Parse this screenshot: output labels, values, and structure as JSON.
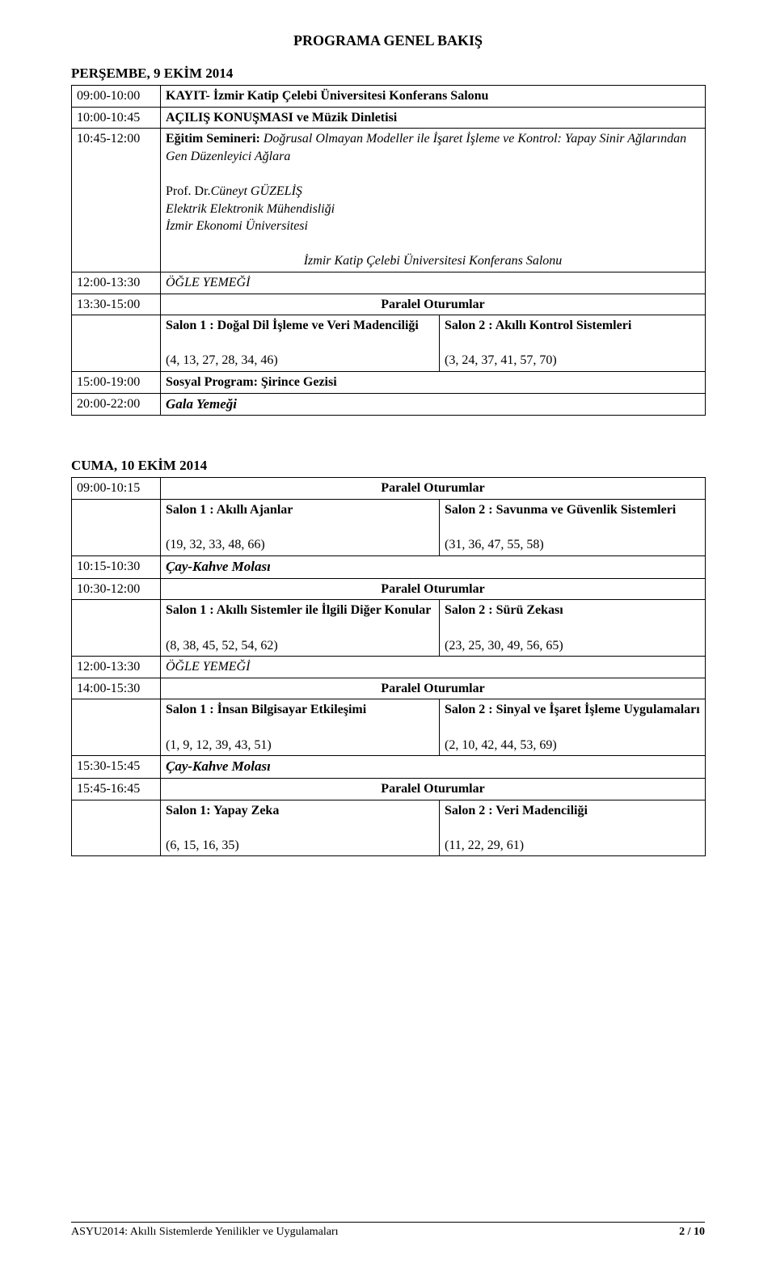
{
  "doc": {
    "title": "PROGRAMA GENEL BAKIŞ",
    "footer_left": "ASYU2014: Akıllı Sistemlerde Yenilikler ve Uygulamaları",
    "footer_right": "2 / 10"
  },
  "day1": {
    "heading": "PERŞEMBE, 9 EKİM 2014",
    "r1": {
      "time": "09:00-10:00",
      "text": "KAYIT- İzmir Katip Çelebi Üniversitesi Konferans Salonu"
    },
    "r2": {
      "time": "10:00-10:45",
      "text": "AÇILIŞ KONUŞMASI ve Müzik Dinletisi"
    },
    "r3": {
      "time": "10:45-12:00",
      "seminar_label": "Eğitim Semineri:",
      "seminar_topic": "Doğrusal Olmayan Modeller ile İşaret İşleme ve Kontrol: Yapay Sinir Ağlarından Gen Düzenleyici Ağlara",
      "speaker_prefix": "Prof. Dr.",
      "speaker_name": "Cüneyt GÜZELİŞ",
      "speaker_aff1": "Elektrik Elektronik Mühendisliği",
      "speaker_aff2": "İzmir Ekonomi Üniversitesi",
      "venue": "İzmir Katip Çelebi Üniversitesi Konferans Salonu"
    },
    "r4": {
      "time": "12:00-13:30",
      "text": "ÖĞLE YEMEĞİ"
    },
    "r5": {
      "time": "13:30-15:00",
      "header": "Paralel Oturumlar",
      "left_title": "Salon 1 : Doğal Dil İşleme ve Veri Madenciliği",
      "left_nums": "(4, 13, 27, 28, 34, 46)",
      "right_title": "Salon 2 : Akıllı Kontrol Sistemleri",
      "right_nums": "(3, 24, 37, 41, 57, 70)"
    },
    "r6": {
      "time": "15:00-19:00",
      "text": "Sosyal Program: Şirince Gezisi"
    },
    "r7": {
      "time": "20:00-22:00",
      "text": "Gala Yemeği"
    }
  },
  "day2": {
    "heading": "CUMA, 10 EKİM 2014",
    "r1": {
      "time": "09:00-10:15",
      "header": "Paralel Oturumlar",
      "left_title": "Salon 1 : Akıllı Ajanlar",
      "left_nums": "(19, 32, 33, 48, 66)",
      "right_title": "Salon 2 : Savunma ve Güvenlik Sistemleri",
      "right_nums": "(31, 36, 47, 55, 58)"
    },
    "r2": {
      "time": "10:15-10:30",
      "text": "Çay-Kahve Molası"
    },
    "r3": {
      "time": "10:30-12:00",
      "header": "Paralel Oturumlar",
      "left_title": "Salon 1 : Akıllı Sistemler ile İlgili Diğer Konular",
      "left_nums": "(8, 38, 45, 52, 54, 62)",
      "right_title": "Salon 2 : Sürü Zekası",
      "right_nums": "(23, 25, 30, 49, 56, 65)"
    },
    "r4": {
      "time": "12:00-13:30",
      "text": "ÖĞLE YEMEĞİ"
    },
    "r5": {
      "time": "14:00-15:30",
      "header": "Paralel Oturumlar",
      "left_title": "Salon 1 : İnsan Bilgisayar Etkileşimi",
      "left_nums": "(1, 9, 12, 39, 43, 51)",
      "right_title": "Salon 2 : Sinyal ve İşaret İşleme Uygulamaları",
      "right_nums": "(2, 10, 42, 44, 53, 69)"
    },
    "r6": {
      "time": "15:30-15:45",
      "text": "Çay-Kahve Molası"
    },
    "r7": {
      "time": "15:45-16:45",
      "header": "Paralel Oturumlar",
      "left_title": "Salon 1: Yapay Zeka",
      "left_nums": "(6, 15, 16, 35)",
      "right_title": "Salon 2 : Veri Madenciliği",
      "right_nums": "(11, 22, 29, 61)"
    }
  }
}
